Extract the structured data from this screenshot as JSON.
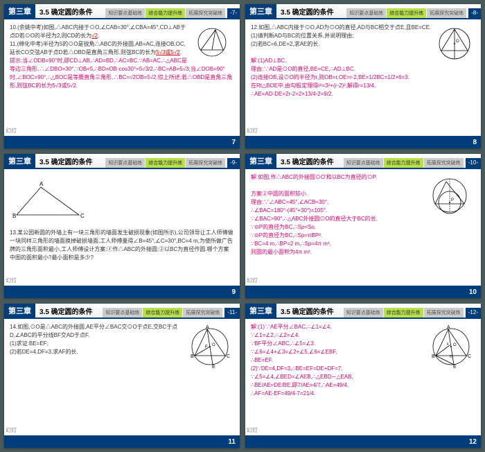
{
  "chapter_label": "第三章",
  "section_title": "3.5 确定圆的条件",
  "tabs": {
    "tab1": "知识要点基础练",
    "tab2": "综合能力提升练",
    "tab3": "拓展探究突破练"
  },
  "footer_label": "幻灯",
  "colors": {
    "header_blue": "#003d7a",
    "tab_green": "#5cb85c",
    "tab_lime": "#b8e04a",
    "magenta": "#d6006c",
    "red": "#d00"
  },
  "slides": [
    {
      "page": "7",
      "top_page": "-7-",
      "lines": [
        {
          "t": "10.(余姚中考)如图,△ABC内接于⊙O,∠CAB=30°,∠CBA=45°,CD⊥AB于点D若⊙O的半径为2,则CD的长为",
          "cls": ""
        },
        {
          "t": "√2",
          "cls": "red underline",
          "inline": true
        },
        {
          "t": ".",
          "cls": "",
          "inline": true
        },
        {
          "t": "",
          "cls": "",
          "br": true
        },
        {
          "t": "11.(绵化中考)半径为5的⊙O是锐角△ABC的外接圆,AB=AC,连接OB,OC,延长CO交弦AB于点D若△OBD是直角三角形,则弦BC的长为",
          "cls": ""
        },
        {
          "t": "5√3或5√2",
          "cls": "red underline",
          "inline": true
        },
        {
          "t": ".",
          "cls": "",
          "inline": true
        },
        {
          "t": "提示:当∠ODB=90°时,即CD⊥AB,∴AD=BD,∴AC=BC.∵AB=AC,∴△ABC是等边三角形,∴∠DBO=30°.∵OB=5,∴BD=OB·cos30°=5√3/2,∴BC=AB=5√3;当∠DOB=90°时,∠BOC=90°,∴△BOC是等腰直角三角形,∴BC=√2OB=5√2.综上所述,若△OBD是直角三角形,则弦BC的长为5√3或5√2.",
          "cls": "magenta"
        }
      ],
      "figure": "circle1"
    },
    {
      "page": "8",
      "top_page": "-8-",
      "lines": [
        {
          "t": "12.如图,△ABC内接于⊙O,AD为⊙O的直径,AD与BC相交于点E,且BE=CE.",
          "cls": ""
        },
        {
          "t": "(1)请判断AD与BC的位置关系,并说明理由;",
          "cls": ""
        },
        {
          "t": "(2)若BC=6,DE=2,求AE的长.",
          "cls": ""
        },
        {
          "t": "",
          "cls": "",
          "br": true
        },
        {
          "t": "解:(1)AD⊥BC.",
          "cls": "magenta"
        },
        {
          "t": "理由:∵AD是⊙O的直径,BE=CE,∴AD⊥BC.",
          "cls": "magenta"
        },
        {
          "t": "(2)连接OB,设⊙O的半径为r,则OB=r,OE=r-2,BE=1/2BC=1/2×6=3.",
          "cls": "magenta"
        },
        {
          "t": "在Rt△BOE中,由勾股定理得r²=3²+(r-2)²,解得r=13/4.",
          "cls": "magenta"
        },
        {
          "t": "∴AE=AD-DE=2r-2=2×13/4-2=9/2.",
          "cls": "magenta"
        }
      ],
      "figure": "circle2"
    },
    {
      "page": "9",
      "top_page": "-9-",
      "lines": [
        {
          "t": "13.某公园新圆的外墙上有一块三角形的墙面发生破损现象(如图所示),公司领导让工人师傅做一块同样三角形的墙面换掉破损墙面,工人师傅量得∠B=45°,∠C=30°,BC=4 m,为使所做广告牌的三角形面积最小,工人师傅设计方案:①作△ABC的外接圆;②以BC为直径作圆.哪个方案中图的面积最小?最小面积是多少?",
          "cls": ""
        }
      ],
      "figure": "triangle"
    },
    {
      "page": "10",
      "top_page": "-10-",
      "lines": [
        {
          "t": "解:如图,作△ABC的外接圆⊙O'和以BC为直径的⊙P.",
          "cls": "magenta"
        },
        {
          "t": "",
          "cls": "",
          "br": true
        },
        {
          "t": "方案②中圆的面积较小.",
          "cls": "magenta"
        },
        {
          "t": "理由:∵∠ABC=45°,∠ACB=30°,",
          "cls": "magenta"
        },
        {
          "t": "∴∠BAC=180°-(45°+30°)=105°.",
          "cls": "magenta"
        },
        {
          "t": "∵∠BAC>90°,∴△ABC外接圆⊙O的直径大于BC的长.",
          "cls": "magenta"
        },
        {
          "t": "∵⊙P的直径为BC,∴Sp<So.",
          "cls": "magenta"
        },
        {
          "t": "∵⊙P的直径为BC,∴Sp=πBP².",
          "cls": "magenta"
        },
        {
          "t": "∵BC=4 m,∴BP=2 m,∴Sp=4π m²,",
          "cls": "magenta"
        },
        {
          "t": "则圆的最小面积为4π m².",
          "cls": "magenta"
        }
      ],
      "figure": "circle3"
    },
    {
      "page": "11",
      "top_page": "-11-",
      "lines": [
        {
          "t": "14.如图,⊙O是△ABC的外接圆,AE平分∠BAC交⊙O于点E,交BC于点D,∠ABC的平分线BF交AD于点F.",
          "cls": ""
        },
        {
          "t": "(1)求证:BE=EF;",
          "cls": ""
        },
        {
          "t": "(2)若DE=4,DF=3,求AF的长.",
          "cls": ""
        }
      ],
      "figure": "circle4"
    },
    {
      "page": "12",
      "top_page": "-12-",
      "lines": [
        {
          "t": "解:(1)∵AE平分∠BAC,∴∠1=∠4.",
          "cls": "magenta"
        },
        {
          "t": "∵∠1=∠2,∴∠2=∠4.",
          "cls": "magenta"
        },
        {
          "t": "∵BF平分∠ABC,∴∠5=∠3.",
          "cls": "magenta"
        },
        {
          "t": "∵∠6=∠4+∠3=∠2+∠5,∠6=∠EBF,",
          "cls": "magenta"
        },
        {
          "t": "∴BE=EF.",
          "cls": "magenta"
        },
        {
          "t": "(2)∵DE=4,DF=3,∴BE=EF=DE+DF=7.",
          "cls": "magenta"
        },
        {
          "t": "∵∠5=∠4,∠BED=∠AEB,∴△EBD∽△EAB,",
          "cls": "magenta"
        },
        {
          "t": "∴BE/AE=DE/BE,即7/AE=4/7,∴AE=49/4,",
          "cls": "magenta"
        },
        {
          "t": "∴AF=AE-EF=49/4-7=21/4.",
          "cls": "magenta"
        }
      ],
      "figure": "circle5"
    }
  ]
}
